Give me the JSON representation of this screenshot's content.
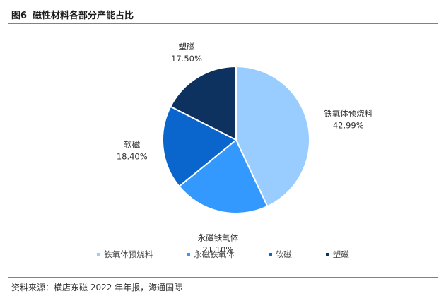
{
  "header": {
    "figure_label": "图6",
    "title": "磁性材料各部分产能占比"
  },
  "chart_data": {
    "type": "pie",
    "title": "",
    "start_angle_deg": 0,
    "direction": "clockwise",
    "slices": [
      {
        "name": "铁氧体预烧料",
        "value": 42.99,
        "label": "42.99%",
        "color": "#99ccff"
      },
      {
        "name": "永磁铁氧体",
        "value": 21.1,
        "label": "21.10%",
        "color": "#3399ff"
      },
      {
        "name": "软磁",
        "value": 18.4,
        "label": "18.40%",
        "color": "#0a66cc"
      },
      {
        "name": "塑磁",
        "value": 17.5,
        "label": "17.50%",
        "color": "#0d3260"
      }
    ],
    "legend_position": "bottom",
    "show_category_labels": true
  },
  "footer": {
    "source": "资料来源：横店东磁 2022 年年报，海通国际"
  }
}
